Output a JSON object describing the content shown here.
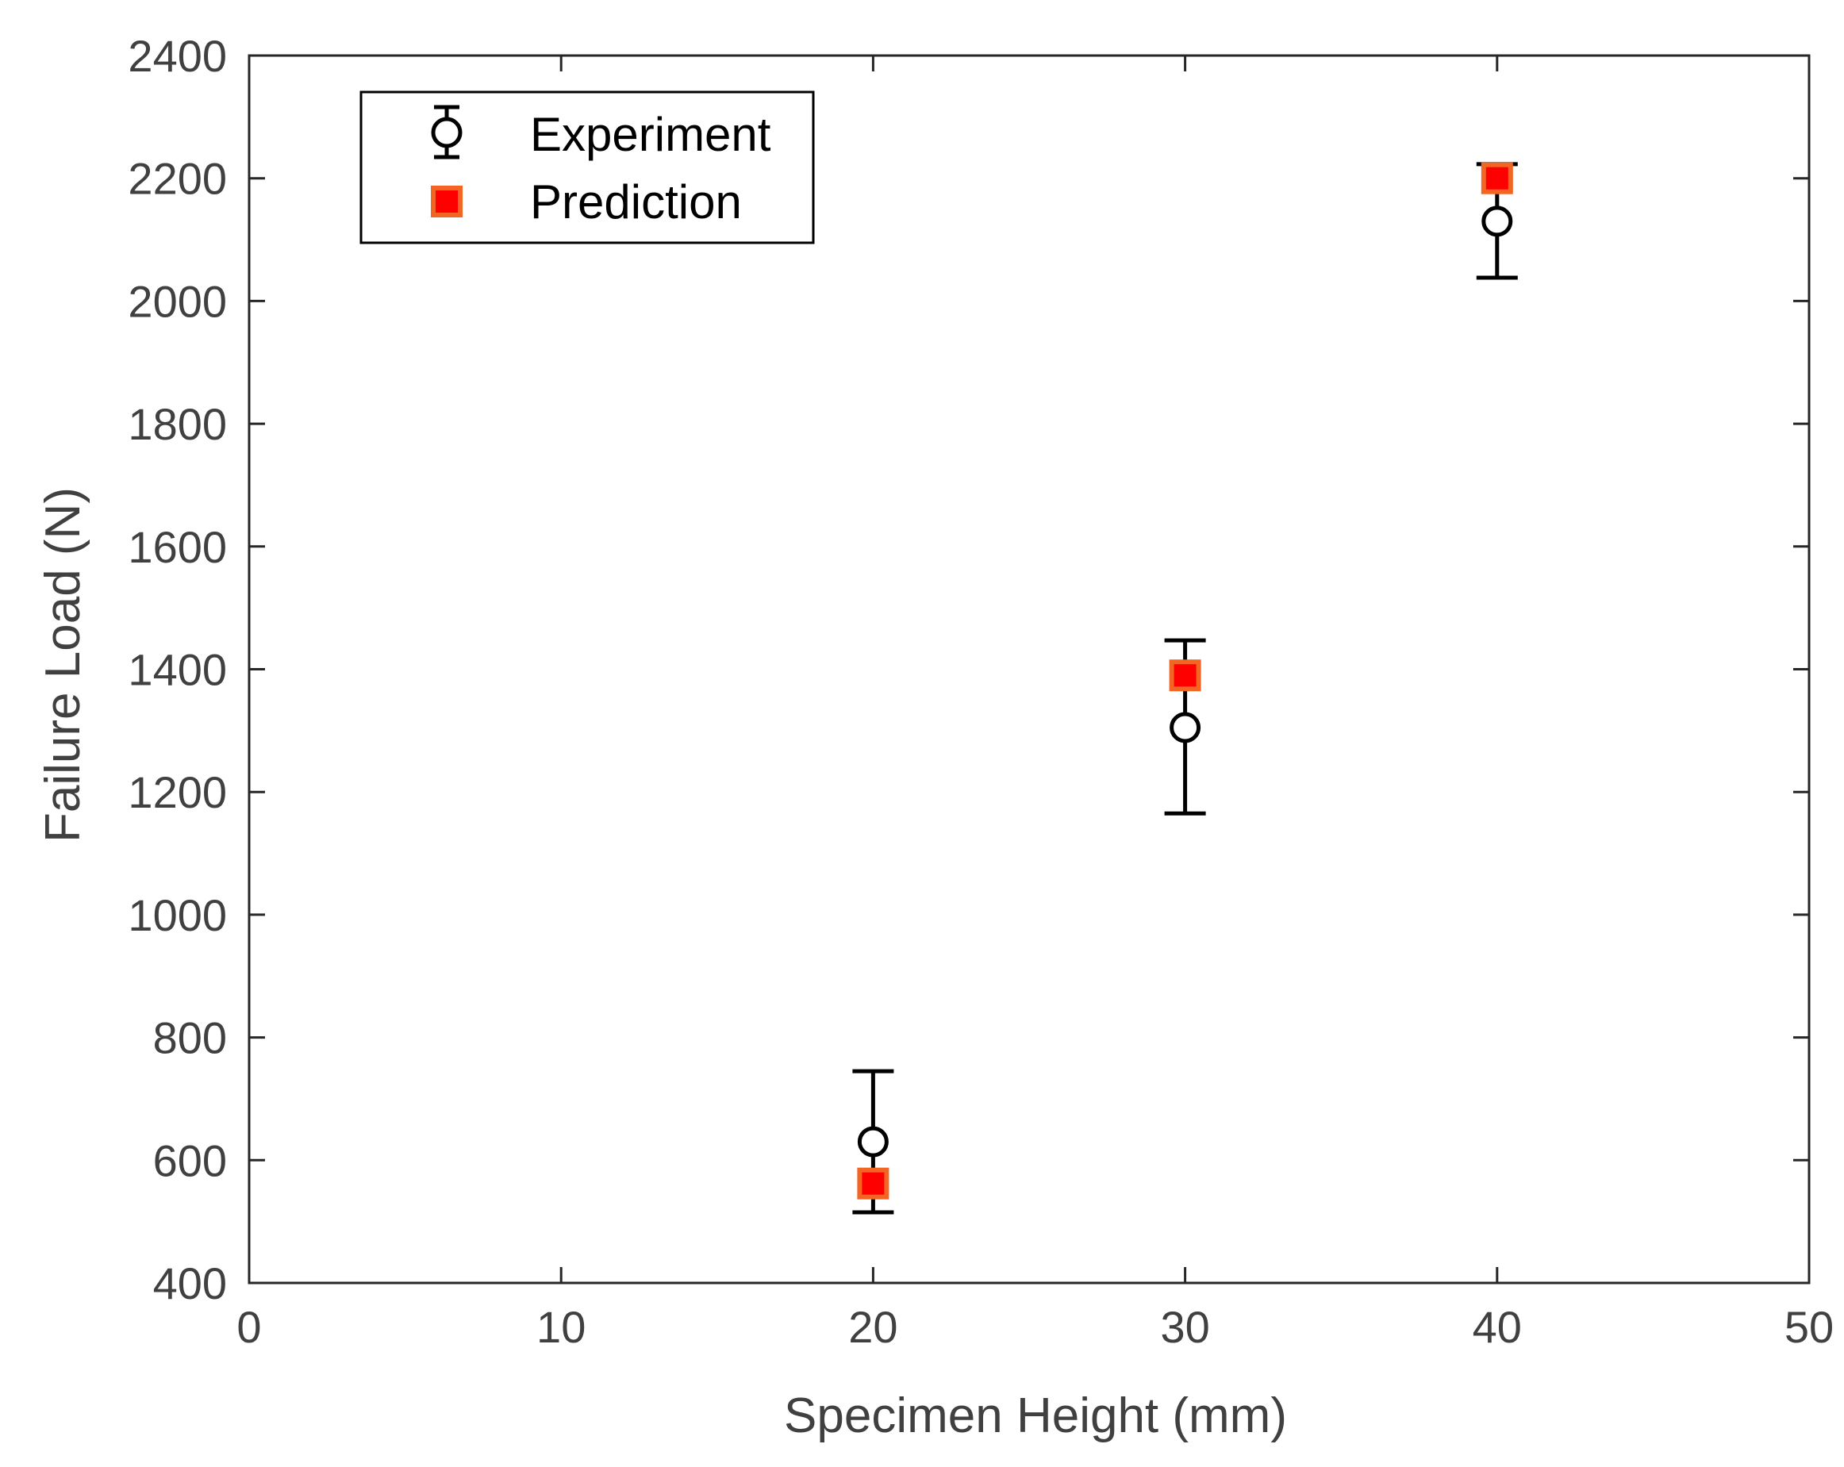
{
  "chart_data": {
    "type": "scatter",
    "title": "",
    "xlabel": "Specimen Height (mm)",
    "ylabel": "Failure Load (N)",
    "xlim": [
      0,
      50
    ],
    "ylim": [
      400,
      2400
    ],
    "xticks": [
      0,
      10,
      20,
      30,
      40,
      50
    ],
    "yticks": [
      400,
      600,
      800,
      1000,
      1200,
      1400,
      1600,
      1800,
      2000,
      2200,
      2400
    ],
    "grid": false,
    "legend_position": "top-left",
    "series": [
      {
        "name": "Experiment",
        "marker": "open-circle-errorbar",
        "color": "#000000",
        "x": [
          20,
          30,
          40
        ],
        "y": [
          630,
          1305,
          2130
        ],
        "y_lower": [
          515,
          1165,
          2038
        ],
        "y_upper": [
          745,
          1447,
          2223
        ]
      },
      {
        "name": "Prediction",
        "marker": "filled-square",
        "color": "#ff0000",
        "edge_color": "#f26522",
        "x": [
          20,
          30,
          40
        ],
        "y": [
          562,
          1390,
          2200
        ]
      }
    ]
  }
}
